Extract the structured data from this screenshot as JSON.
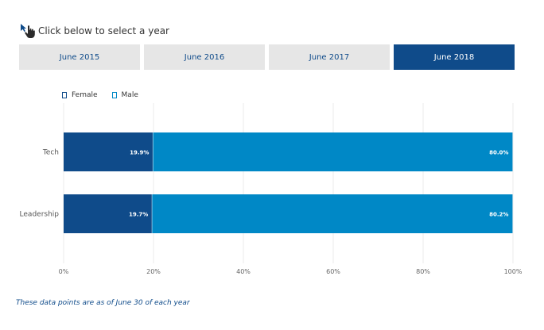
{
  "instruction": {
    "text": "Click below to select a year",
    "icon": "pointer-hand-icon"
  },
  "year_tabs": [
    {
      "label": "June 2015",
      "active": false
    },
    {
      "label": "June 2016",
      "active": false
    },
    {
      "label": "June 2017",
      "active": false
    },
    {
      "label": "June 2018",
      "active": true
    }
  ],
  "colors": {
    "female": "#0f4b8a",
    "male": "#0088c6",
    "tab_inactive": "#e6e6e6",
    "tab_active": "#0f4b8a"
  },
  "chart_data": {
    "type": "bar",
    "orientation": "horizontal",
    "stacked": true,
    "categories": [
      "Tech",
      "Leadership"
    ],
    "series": [
      {
        "name": "Female",
        "values": [
          19.9,
          19.7
        ],
        "labels": [
          "19.9%",
          "19.7%"
        ]
      },
      {
        "name": "Male",
        "values": [
          80.0,
          80.2
        ],
        "labels": [
          "80.0%",
          "80.2%"
        ]
      }
    ],
    "xlim": [
      0,
      100
    ],
    "xticks": [
      0,
      20,
      40,
      60,
      80,
      100
    ],
    "xtick_labels": [
      "0%",
      "20%",
      "40%",
      "60%",
      "80%",
      "100%"
    ],
    "grid": true,
    "legend": "top-left"
  },
  "footnote": "These data points are as of June 30 of each year"
}
